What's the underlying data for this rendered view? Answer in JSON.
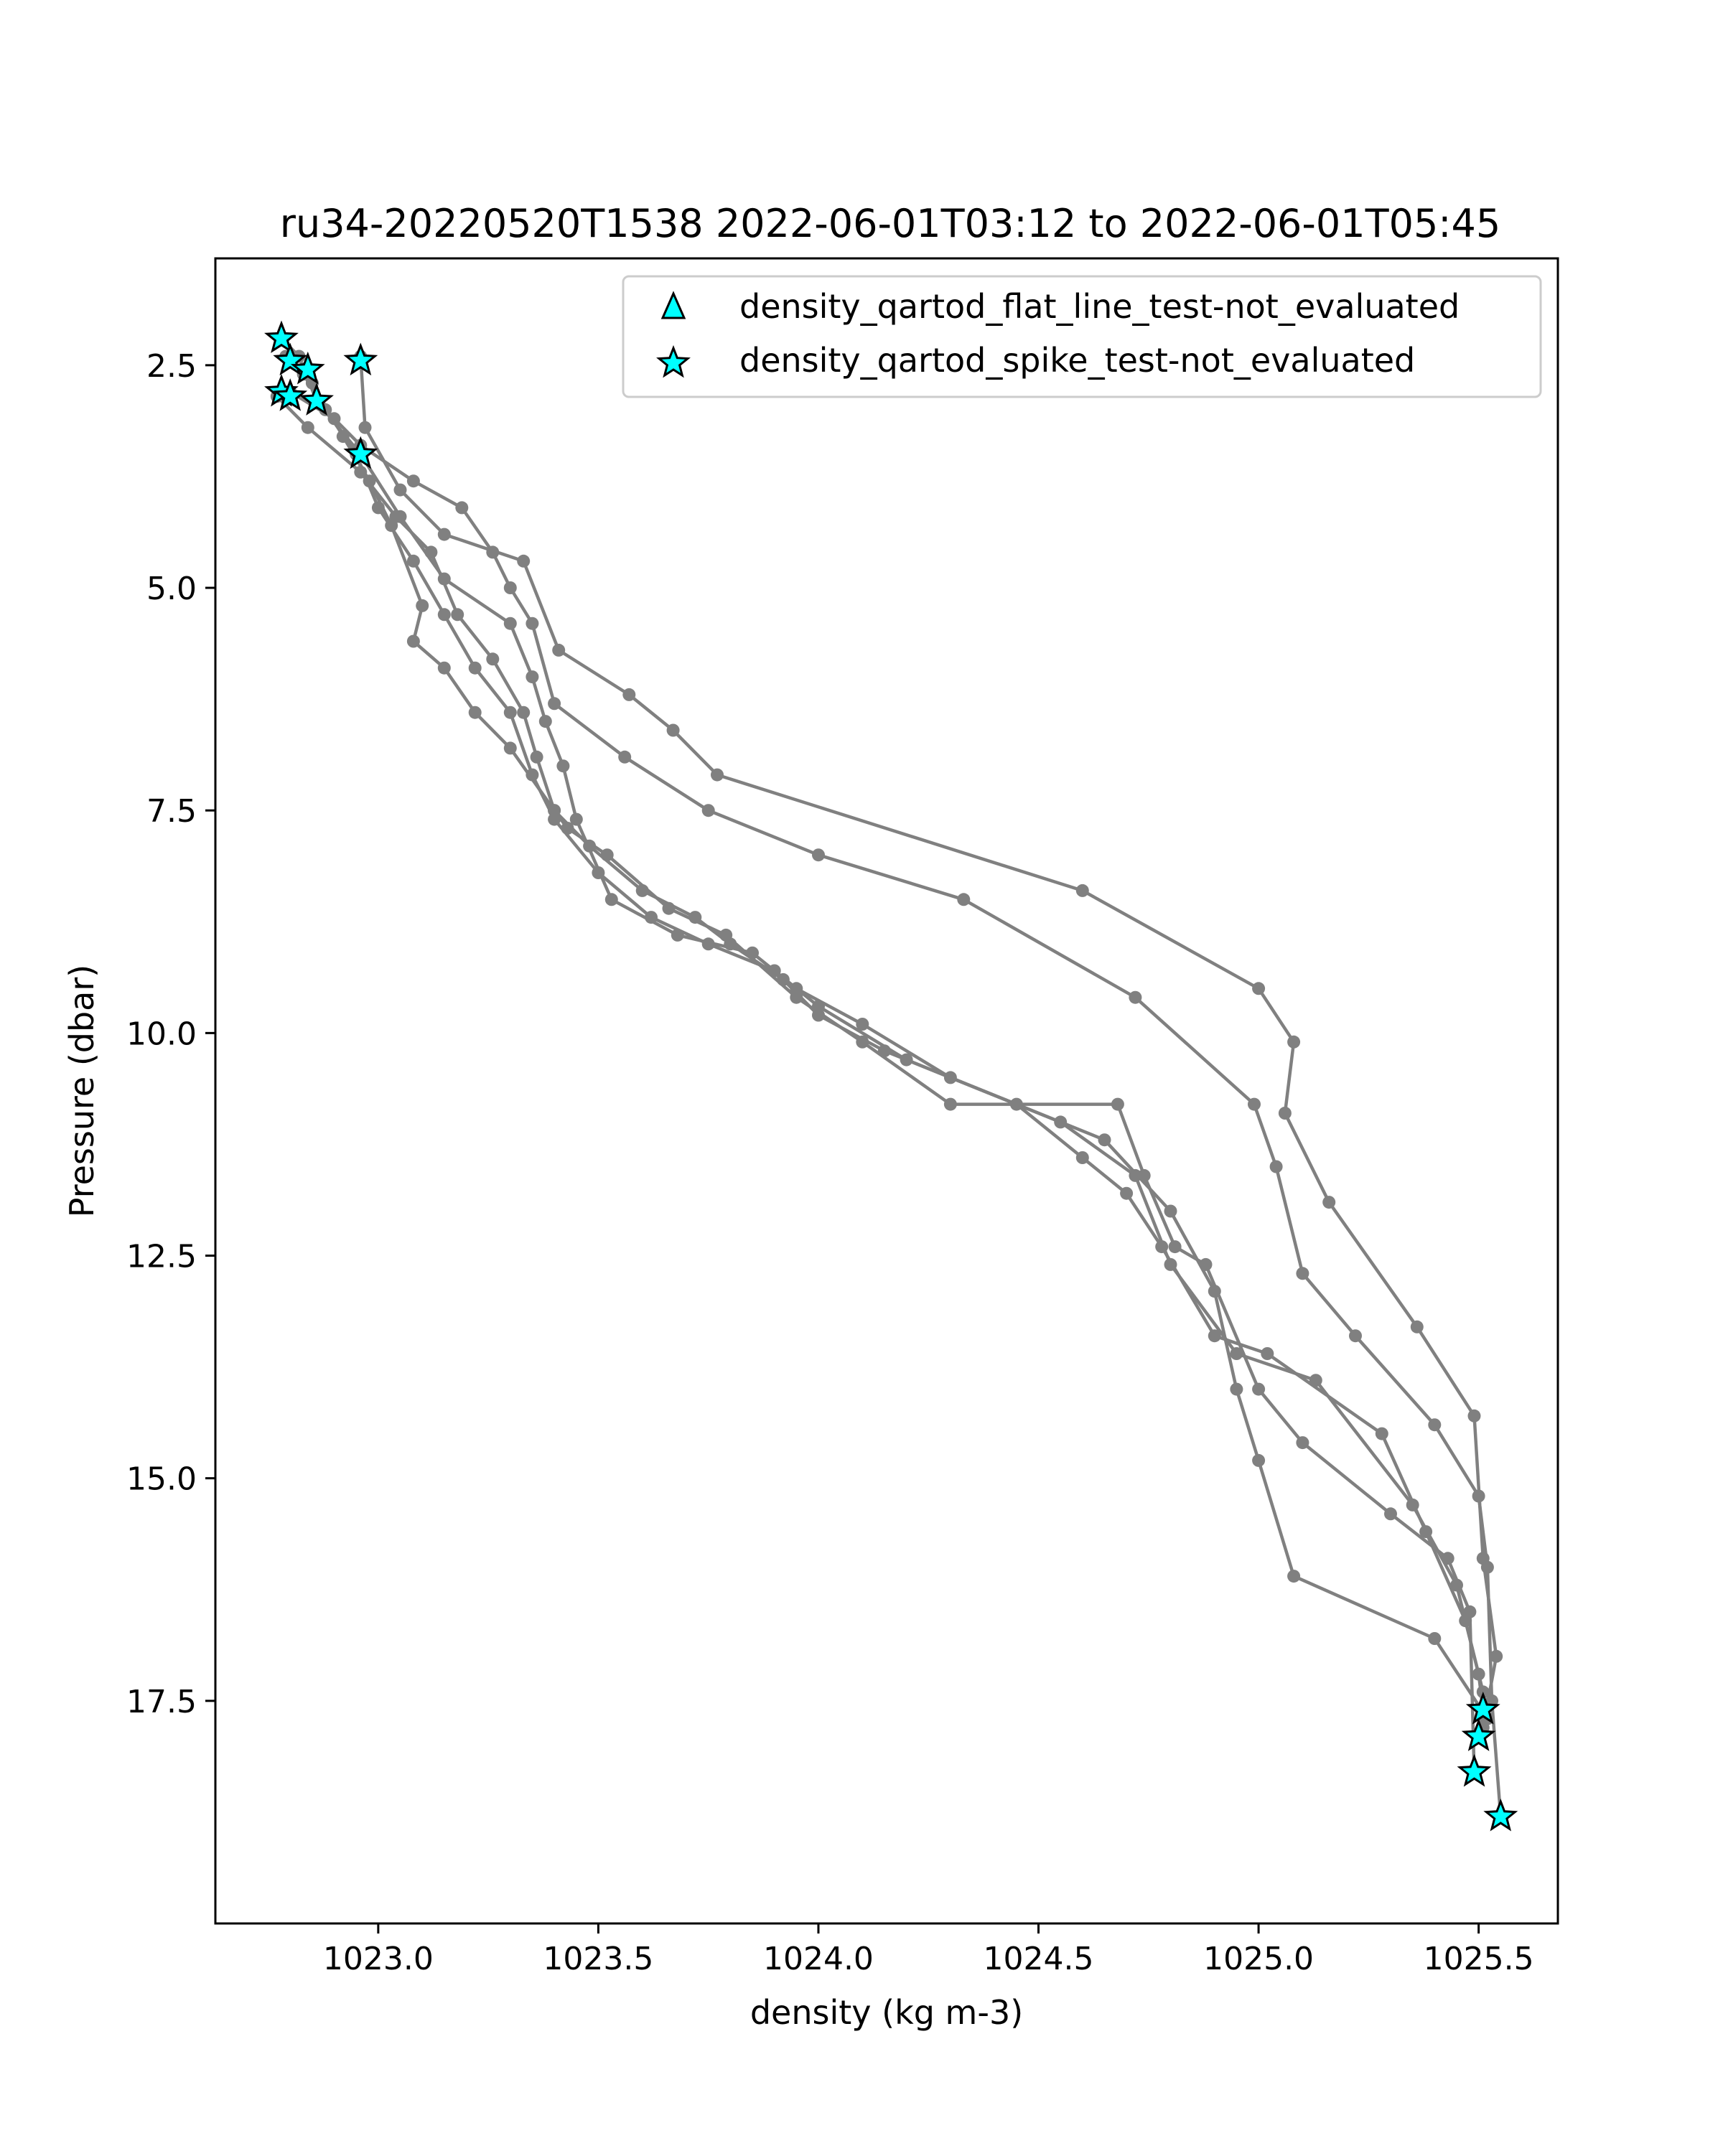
{
  "chart_data": {
    "type": "line",
    "title": "ru34-20220520T1538 2022-06-01T03:12 to 2022-06-01T05:45",
    "xlabel": "density (kg m-3)",
    "ylabel": "Pressure (dbar)",
    "xlim": [
      1022.63,
      1025.68
    ],
    "ylim": [
      20.0,
      1.3
    ],
    "y_inverted": true,
    "grid": false,
    "legend_position": "top-right",
    "xticks": [
      1023.0,
      1023.5,
      1024.0,
      1024.5,
      1025.0,
      1025.5
    ],
    "xtick_labels": [
      "1023.0",
      "1023.5",
      "1024.0",
      "1024.5",
      "1025.0",
      "1025.5"
    ],
    "yticks": [
      2.5,
      5.0,
      7.5,
      10.0,
      12.5,
      15.0,
      17.5
    ],
    "ytick_labels": [
      "2.5",
      "5.0",
      "7.5",
      "10.0",
      "12.5",
      "15.0",
      "17.5"
    ],
    "colors": {
      "profile_line": "#808080",
      "flag_marker": "#00ffff",
      "flag_edge": "#000000"
    },
    "series": [
      {
        "name": "",
        "points": [
          [
            1022.78,
            2.2
          ],
          [
            1022.82,
            2.4
          ],
          [
            1022.86,
            2.9
          ],
          [
            1022.96,
            3.5
          ],
          [
            1023.05,
            4.2
          ],
          [
            1023.15,
            4.9
          ],
          [
            1023.3,
            5.4
          ],
          [
            1023.35,
            6.0
          ],
          [
            1023.38,
            6.5
          ],
          [
            1023.42,
            7.0
          ],
          [
            1023.45,
            7.6
          ],
          [
            1023.53,
            8.5
          ],
          [
            1023.68,
            8.9
          ],
          [
            1023.85,
            9.1
          ],
          [
            1023.95,
            9.5
          ],
          [
            1024.1,
            9.9
          ],
          [
            1024.3,
            10.5
          ],
          [
            1024.55,
            11.0
          ],
          [
            1024.72,
            11.6
          ],
          [
            1024.8,
            12.6
          ],
          [
            1024.95,
            13.6
          ],
          [
            1025.13,
            13.9
          ],
          [
            1025.35,
            15.3
          ],
          [
            1025.45,
            16.2
          ],
          [
            1025.5,
            17.2
          ],
          [
            1025.51,
            17.6
          ]
        ]
      },
      {
        "name": "",
        "points": [
          [
            1022.79,
            2.4
          ],
          [
            1022.85,
            2.7
          ],
          [
            1022.92,
            3.3
          ],
          [
            1022.98,
            3.8
          ],
          [
            1023.03,
            4.3
          ],
          [
            1023.1,
            5.2
          ],
          [
            1023.08,
            5.6
          ],
          [
            1023.15,
            5.9
          ],
          [
            1023.22,
            6.4
          ],
          [
            1023.3,
            6.8
          ],
          [
            1023.4,
            7.5
          ],
          [
            1023.48,
            7.9
          ],
          [
            1023.6,
            8.4
          ],
          [
            1023.72,
            8.7
          ],
          [
            1023.8,
            9.0
          ],
          [
            1023.92,
            9.4
          ],
          [
            1024.0,
            9.8
          ],
          [
            1024.15,
            10.2
          ],
          [
            1024.45,
            10.8
          ],
          [
            1024.6,
            11.4
          ],
          [
            1024.7,
            11.8
          ],
          [
            1024.78,
            12.4
          ],
          [
            1024.9,
            13.4
          ],
          [
            1025.02,
            13.6
          ],
          [
            1025.28,
            14.5
          ],
          [
            1025.38,
            15.6
          ],
          [
            1025.47,
            16.6
          ],
          [
            1025.51,
            17.4
          ],
          [
            1025.5,
            17.9
          ]
        ]
      },
      {
        "name": "",
        "points": [
          [
            1022.77,
            2.85
          ],
          [
            1022.84,
            3.2
          ],
          [
            1022.96,
            3.7
          ],
          [
            1023.04,
            4.2
          ],
          [
            1023.12,
            4.6
          ],
          [
            1023.18,
            5.3
          ],
          [
            1023.26,
            5.8
          ],
          [
            1023.33,
            6.4
          ],
          [
            1023.36,
            6.9
          ],
          [
            1023.4,
            7.5
          ],
          [
            1023.43,
            7.7
          ],
          [
            1023.52,
            8.0
          ],
          [
            1023.66,
            8.6
          ],
          [
            1023.79,
            8.9
          ],
          [
            1023.95,
            9.6
          ],
          [
            1024.1,
            10.1
          ],
          [
            1024.3,
            10.8
          ],
          [
            1024.68,
            10.8
          ],
          [
            1024.74,
            11.6
          ],
          [
            1024.81,
            12.4
          ],
          [
            1024.88,
            12.6
          ],
          [
            1025.0,
            14.0
          ],
          [
            1025.1,
            14.6
          ],
          [
            1025.3,
            15.4
          ],
          [
            1025.43,
            15.9
          ],
          [
            1025.48,
            16.5
          ],
          [
            1025.49,
            18.3
          ]
        ]
      },
      {
        "name": "",
        "points": [
          [
            1022.8,
            2.8
          ],
          [
            1022.9,
            3.1
          ],
          [
            1022.96,
            3.4
          ],
          [
            1023.08,
            3.8
          ],
          [
            1023.19,
            4.1
          ],
          [
            1023.26,
            4.6
          ],
          [
            1023.3,
            5.0
          ],
          [
            1023.35,
            5.4
          ],
          [
            1023.4,
            6.3
          ],
          [
            1023.56,
            6.9
          ],
          [
            1023.75,
            7.5
          ],
          [
            1024.0,
            8.0
          ],
          [
            1024.33,
            8.5
          ],
          [
            1024.72,
            9.6
          ],
          [
            1024.99,
            10.8
          ],
          [
            1025.04,
            11.5
          ],
          [
            1025.1,
            12.7
          ],
          [
            1025.22,
            13.4
          ],
          [
            1025.4,
            14.4
          ],
          [
            1025.5,
            15.2
          ],
          [
            1025.52,
            16.0
          ],
          [
            1025.53,
            17.5
          ],
          [
            1025.55,
            18.8
          ]
        ]
      },
      {
        "name": "",
        "points": [
          [
            1022.83,
            2.6
          ],
          [
            1022.88,
            3.0
          ],
          [
            1022.95,
            3.5
          ],
          [
            1023.0,
            4.1
          ],
          [
            1023.08,
            4.7
          ],
          [
            1023.15,
            5.3
          ],
          [
            1023.22,
            5.9
          ],
          [
            1023.3,
            6.4
          ],
          [
            1023.35,
            7.1
          ],
          [
            1023.4,
            7.6
          ],
          [
            1023.5,
            8.2
          ],
          [
            1023.62,
            8.7
          ],
          [
            1023.75,
            9.0
          ],
          [
            1023.9,
            9.3
          ],
          [
            1024.0,
            9.7
          ],
          [
            1024.2,
            10.3
          ],
          [
            1024.65,
            11.2
          ],
          [
            1024.8,
            12.0
          ],
          [
            1024.9,
            12.9
          ],
          [
            1024.95,
            14.0
          ],
          [
            1025.0,
            14.8
          ],
          [
            1025.08,
            16.1
          ],
          [
            1025.4,
            16.8
          ],
          [
            1025.52,
            17.7
          ]
        ]
      },
      {
        "name": "",
        "points": [
          [
            1022.96,
            2.4
          ],
          [
            1022.97,
            3.2
          ],
          [
            1023.05,
            3.9
          ],
          [
            1023.15,
            4.4
          ],
          [
            1023.33,
            4.7
          ],
          [
            1023.41,
            5.7
          ],
          [
            1023.57,
            6.2
          ],
          [
            1023.67,
            6.6
          ],
          [
            1023.77,
            7.1
          ],
          [
            1024.6,
            8.4
          ],
          [
            1025.0,
            9.5
          ],
          [
            1025.08,
            10.1
          ],
          [
            1025.06,
            10.9
          ],
          [
            1025.16,
            11.9
          ],
          [
            1025.36,
            13.3
          ],
          [
            1025.49,
            14.3
          ],
          [
            1025.51,
            15.9
          ],
          [
            1025.54,
            17.0
          ],
          [
            1025.51,
            17.8
          ]
        ]
      }
    ],
    "flagged_points": {
      "flat_line": [],
      "spike": [
        [
          1022.78,
          2.2
        ],
        [
          1022.8,
          2.45
        ],
        [
          1022.84,
          2.55
        ],
        [
          1022.96,
          2.45
        ],
        [
          1022.78,
          2.8
        ],
        [
          1022.8,
          2.85
        ],
        [
          1022.86,
          2.9
        ],
        [
          1022.96,
          3.5
        ],
        [
          1025.51,
          17.6
        ],
        [
          1025.5,
          17.9
        ],
        [
          1025.49,
          18.3
        ],
        [
          1025.55,
          18.8
        ]
      ]
    },
    "legend": [
      {
        "marker": "triangle",
        "label": "density_qartod_flat_line_test-not_evaluated"
      },
      {
        "marker": "star",
        "label": "density_qartod_spike_test-not_evaluated"
      }
    ]
  }
}
